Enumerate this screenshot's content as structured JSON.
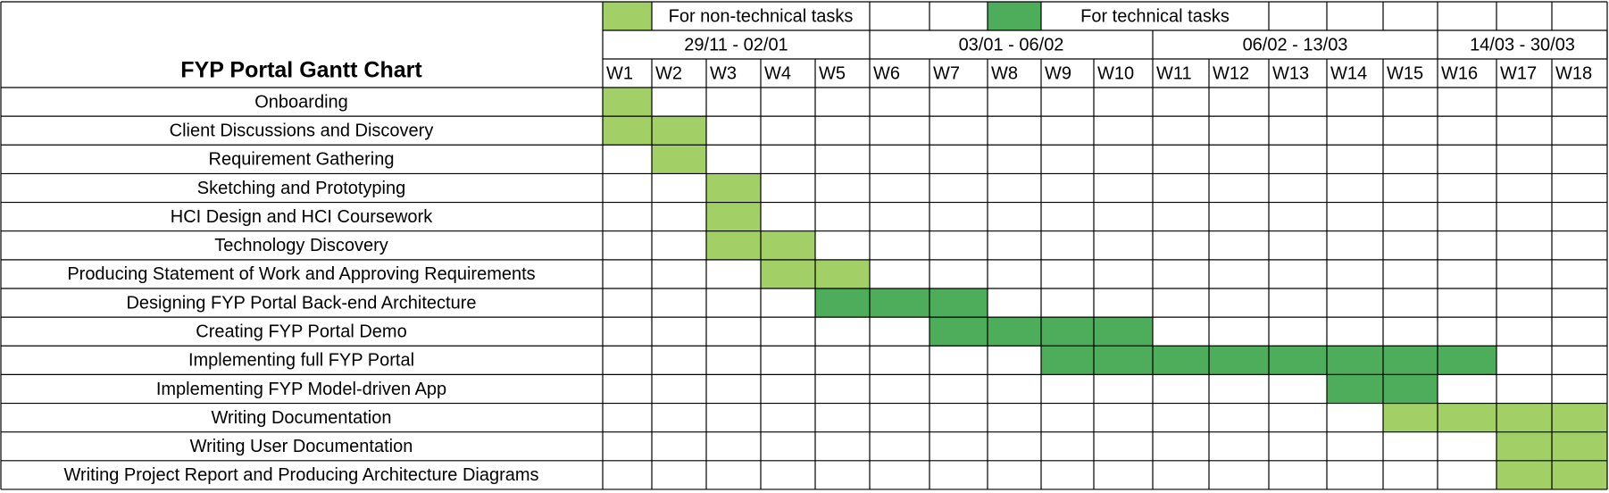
{
  "chart_data": {
    "type": "table",
    "title": "FYP Portal Gantt Chart",
    "legend": {
      "non_technical": {
        "label": "For non-technical tasks",
        "color": "#a2cf66"
      },
      "technical": {
        "label": "For technical tasks",
        "color": "#4ead5b"
      }
    },
    "periods": [
      {
        "label": "29/11 - 02/01",
        "weeks": [
          1,
          5
        ]
      },
      {
        "label": "03/01 - 06/02",
        "weeks": [
          6,
          10
        ]
      },
      {
        "label": "06/02 - 13/03",
        "weeks": [
          11,
          15
        ]
      },
      {
        "label": "14/03 - 30/03",
        "weeks": [
          16,
          18
        ]
      }
    ],
    "weeks": [
      "W1",
      "W2",
      "W3",
      "W4",
      "W5",
      "W6",
      "W7",
      "W8",
      "W9",
      "W10",
      "W11",
      "W12",
      "W13",
      "W14",
      "W15",
      "W16",
      "W17",
      "W18"
    ],
    "tasks": [
      {
        "name": "Onboarding",
        "start": 1,
        "end": 1,
        "category": "non_technical"
      },
      {
        "name": "Client Discussions and Discovery",
        "start": 1,
        "end": 2,
        "category": "non_technical"
      },
      {
        "name": "Requirement Gathering",
        "start": 2,
        "end": 2,
        "category": "non_technical"
      },
      {
        "name": "Sketching and Prototyping",
        "start": 3,
        "end": 3,
        "category": "non_technical"
      },
      {
        "name": "HCI Design and HCI Coursework",
        "start": 3,
        "end": 3,
        "category": "non_technical"
      },
      {
        "name": "Technology Discovery",
        "start": 3,
        "end": 4,
        "category": "non_technical"
      },
      {
        "name": "Producing Statement of Work and Approving Requirements",
        "start": 4,
        "end": 5,
        "category": "non_technical"
      },
      {
        "name": "Designing FYP Portal Back-end Architecture",
        "start": 5,
        "end": 7,
        "category": "technical"
      },
      {
        "name": "Creating FYP Portal Demo",
        "start": 7,
        "end": 10,
        "category": "technical"
      },
      {
        "name": "Implementing full FYP Portal",
        "start": 9,
        "end": 16,
        "category": "technical"
      },
      {
        "name": "Implementing FYP Model-driven App",
        "start": 14,
        "end": 15,
        "category": "technical"
      },
      {
        "name": "Writing Documentation",
        "start": 15,
        "end": 18,
        "category": "non_technical"
      },
      {
        "name": "Writing User Documentation",
        "start": 17,
        "end": 18,
        "category": "non_technical"
      },
      {
        "name": "Writing Project Report and Producing Architecture Diagrams",
        "start": 17,
        "end": 18,
        "category": "non_technical"
      }
    ]
  }
}
